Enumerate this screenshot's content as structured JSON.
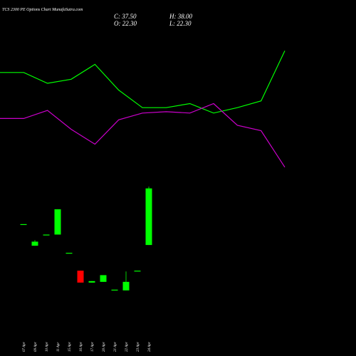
{
  "header": {
    "title": "TCS 2300  PE Options  Chart MunafaSutra.com",
    "close": "C: 37.50",
    "high": "H: 38.00",
    "open": "O: 22.30",
    "low": "L: 22.30"
  },
  "chart_data": [
    {
      "type": "line",
      "categories": [
        null,
        null,
        null,
        null,
        null,
        null,
        null,
        null,
        null,
        null,
        null,
        null,
        null
      ],
      "ylim": [
        0,
        100
      ],
      "series": [
        {
          "color": "#00ff00",
          "values": [
            78,
            78,
            70,
            73,
            84,
            65,
            52,
            52,
            55,
            48,
            52,
            57,
            94
          ]
        },
        {
          "color": "#cc00cc",
          "values": [
            44,
            44,
            50,
            36,
            25,
            43,
            48,
            49,
            48,
            55,
            39,
            35,
            8
          ]
        }
      ]
    },
    {
      "type": "candlestick",
      "categories": [
        "07 Apr",
        "09 Apr",
        "10 Apr",
        "11 Apr",
        "15 Apr",
        "16 Apr",
        "17 Apr",
        "20 Apr",
        "21 Apr",
        "22 Apr",
        "23 Apr",
        "24 Apr"
      ],
      "open": [
        27.9,
        22.1,
        25.1,
        25.1,
        20.2,
        15.4,
        12.2,
        12.4,
        10.3,
        10.1,
        15.4,
        22.3
      ],
      "high": [
        27.9,
        23.6,
        25.1,
        31.9,
        20.2,
        15.4,
        12.6,
        14.2,
        10.3,
        15.2,
        15.4,
        38.0
      ],
      "low": [
        27.9,
        22.1,
        25.1,
        25.1,
        20.2,
        12.2,
        12.2,
        12.4,
        10.3,
        10.1,
        15.4,
        22.3
      ],
      "close": [
        27.9,
        23.2,
        25.1,
        31.9,
        20.2,
        12.2,
        12.6,
        14.2,
        10.3,
        12.4,
        15.4,
        37.5
      ],
      "up_color": "#00ff00",
      "down_color": "#ff0000",
      "ylim": [
        3,
        38
      ]
    }
  ]
}
